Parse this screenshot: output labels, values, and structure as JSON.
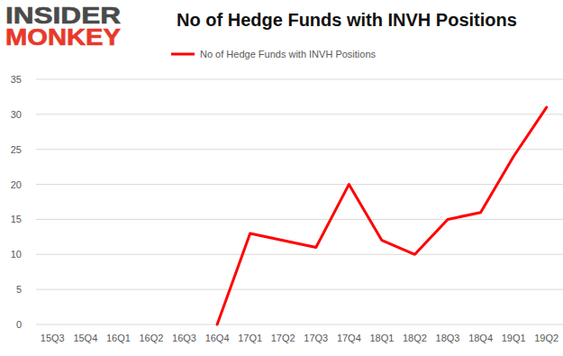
{
  "chart_data": {
    "type": "line",
    "title": "No of Hedge Funds with INVH Positions",
    "annotations": [
      "INSIDER",
      "MONKEY"
    ],
    "categories": [
      "15Q3",
      "15Q4",
      "16Q1",
      "16Q2",
      "16Q3",
      "16Q4",
      "17Q1",
      "17Q2",
      "17Q3",
      "17Q4",
      "18Q1",
      "18Q2",
      "18Q3",
      "18Q4",
      "19Q1",
      "19Q2"
    ],
    "series": [
      {
        "name": "No of Hedge Funds with INVH Positions",
        "color": "#ff0000",
        "values": [
          null,
          null,
          null,
          null,
          null,
          0,
          13,
          12,
          11,
          20,
          12,
          10,
          15,
          16,
          24,
          31
        ]
      }
    ],
    "ylim": [
      0,
      35
    ],
    "yticks": [
      0,
      5,
      10,
      15,
      20,
      25,
      30,
      35
    ],
    "grid": true,
    "legend": "top"
  }
}
